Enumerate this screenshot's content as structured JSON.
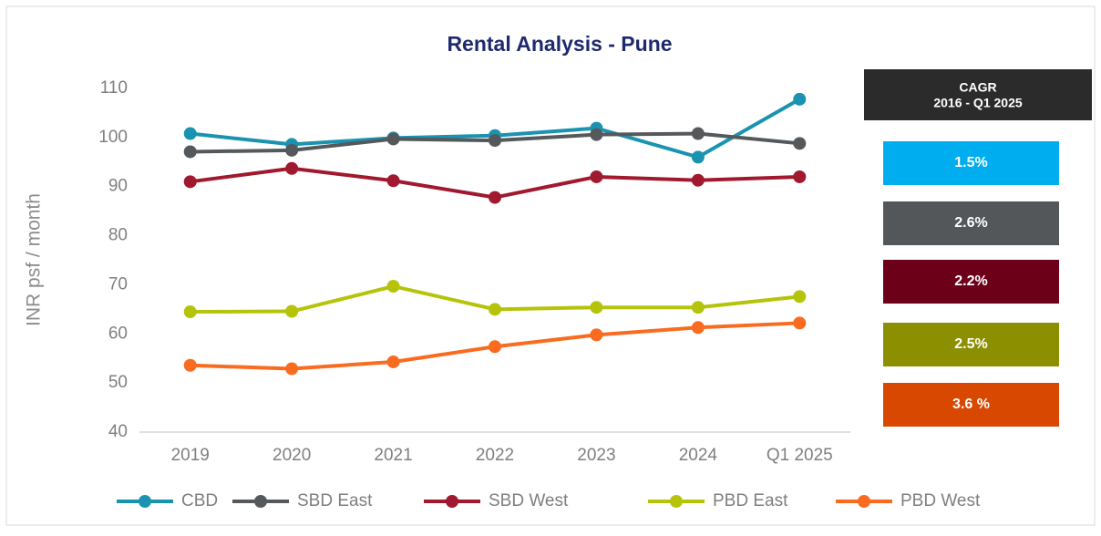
{
  "chart_data": {
    "type": "line",
    "title": "Rental Analysis - Pune",
    "y_label": "INR psf / month",
    "categories": [
      "2019",
      "2020",
      "2021",
      "2022",
      "2023",
      "2024",
      "Q1 2025"
    ],
    "series": [
      {
        "name": "CBD",
        "color": "#1a93b0",
        "values": [
          100.8,
          98.6,
          99.9,
          100.4,
          101.9,
          96.0,
          107.8
        ]
      },
      {
        "name": "SBD East",
        "color": "#55595c",
        "values": [
          97.1,
          97.4,
          99.7,
          99.4,
          100.6,
          100.8,
          98.8
        ]
      },
      {
        "name": "SBD West",
        "color": "#a0192e",
        "values": [
          91.0,
          93.7,
          91.2,
          87.8,
          92.0,
          91.3,
          92.0
        ]
      },
      {
        "name": "PBD East",
        "color": "#b5c40a",
        "values": [
          64.5,
          64.6,
          69.7,
          65.0,
          65.4,
          65.4,
          67.6
        ]
      },
      {
        "name": "PBD West",
        "color": "#f96b1f",
        "values": [
          53.6,
          52.9,
          54.3,
          57.4,
          59.8,
          61.3,
          62.2
        ]
      }
    ],
    "ylim": [
      40,
      110
    ],
    "yticks": [
      40,
      50,
      60,
      70,
      80,
      90,
      100,
      110
    ],
    "grid": false,
    "legend": "bottom",
    "cagr": {
      "title": [
        "CAGR",
        "2016 - Q1 2025"
      ],
      "title_color": "#2b2b2b",
      "boxes": [
        {
          "label": "1.5%",
          "color": "#00aeef"
        },
        {
          "label": "2.6%",
          "color": "#545759"
        },
        {
          "label": "2.2%",
          "color": "#6d0019"
        },
        {
          "label": "2.5%",
          "color": "#8b8f00"
        },
        {
          "label": "3.6 %",
          "color": "#d94801"
        }
      ]
    }
  }
}
